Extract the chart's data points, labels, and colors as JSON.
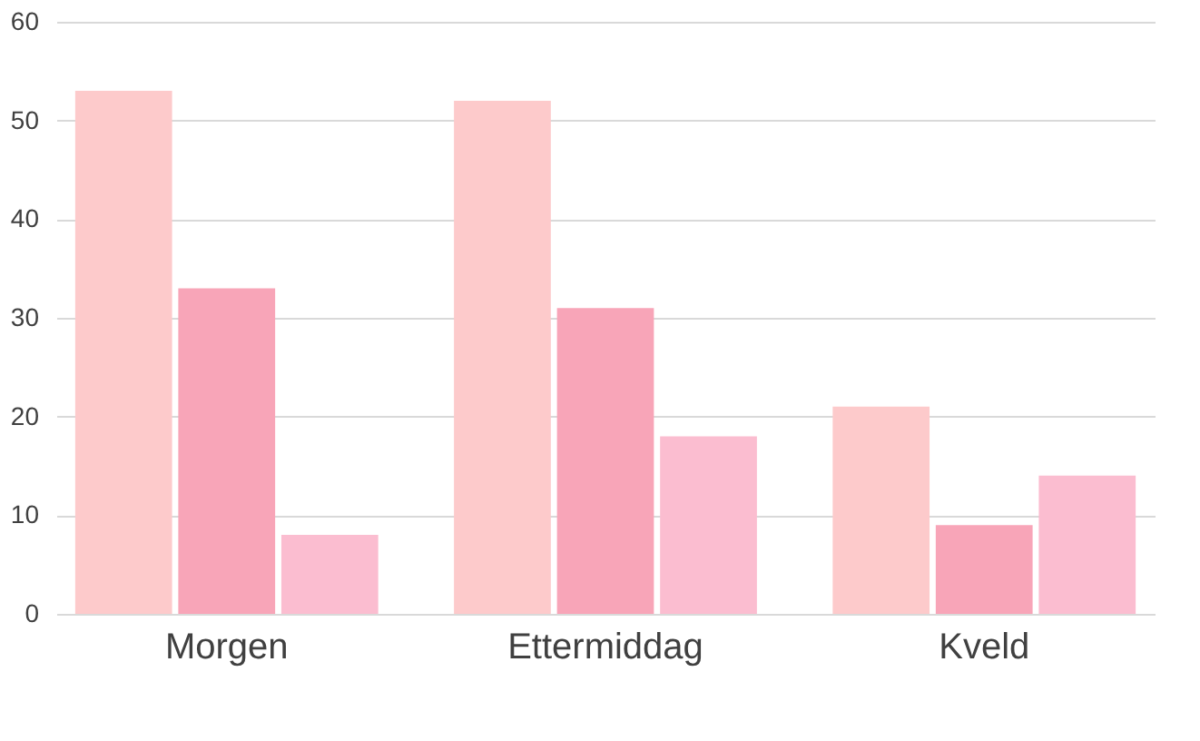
{
  "chart_data": {
    "type": "bar",
    "categories": [
      "Morgen",
      "Ettermiddag",
      "Kveld"
    ],
    "series": [
      {
        "color": "#fdcacb",
        "values": [
          53,
          52,
          21
        ]
      },
      {
        "color": "#f8a5b8",
        "values": [
          33,
          31,
          9
        ]
      },
      {
        "color": "#fbbdd0",
        "values": [
          8,
          18,
          14
        ]
      }
    ],
    "ylim": [
      0,
      60
    ],
    "yticks": [
      0,
      10,
      20,
      30,
      40,
      50,
      60
    ],
    "grid": "y"
  }
}
